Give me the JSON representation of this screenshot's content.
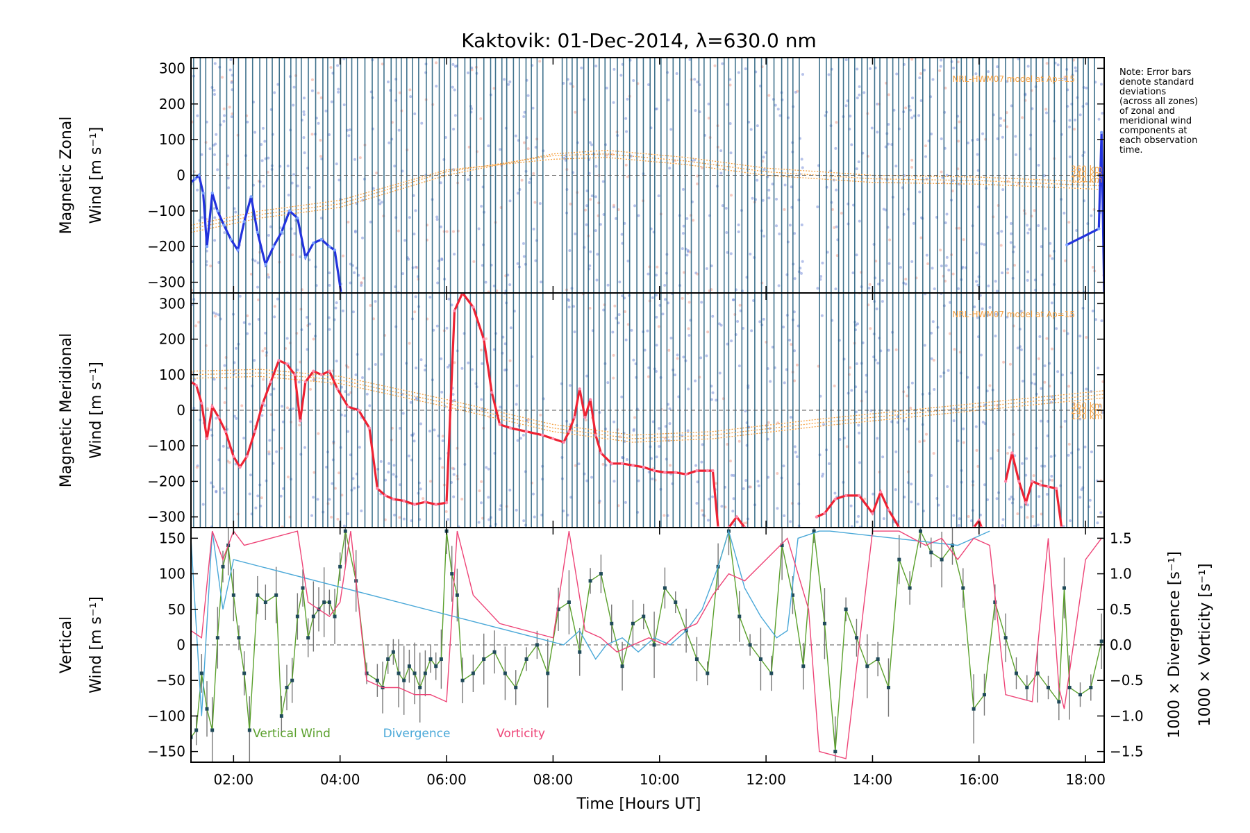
{
  "chart_data": {
    "title": "Kaktovik: 01-Dec-2014, λ=630.0 nm",
    "xlabel": "Time [Hours UT]",
    "xlim": [
      1.2,
      18.35
    ],
    "x_ticks": [
      "02:00",
      "04:00",
      "06:00",
      "08:00",
      "10:00",
      "12:00",
      "14:00",
      "16:00",
      "18:00"
    ],
    "x_tick_values": [
      2,
      4,
      6,
      8,
      10,
      12,
      14,
      16,
      18
    ],
    "note": [
      "Note: Error bars",
      "denote standard",
      "deviations",
      "(across all zones)",
      "of zonal and",
      "meridional wind",
      "components at",
      "each observation",
      "time."
    ],
    "colors": {
      "zonal": "#2233dd",
      "meridional": "#ee2233",
      "vertical": "#5aa02c",
      "divergence": "#4aa8d8",
      "vorticity": "#ee4477",
      "model": "#f5a040",
      "obs_lines": "#1f5a7a",
      "errorbar": "#777777",
      "dots": "#7a8fd8"
    },
    "panels": [
      {
        "type": "line",
        "ylabel_lines": [
          "Magnetic Zonal",
          "Wind"
        ],
        "ylabel_unit": "[m s⁻¹]",
        "ylim": [
          -330,
          330
        ],
        "y_ticks": [
          "300",
          "200",
          "100",
          "0",
          "−100",
          "−200",
          "−300"
        ],
        "y_tick_values": [
          300,
          200,
          100,
          0,
          -100,
          -200,
          -300
        ],
        "model_label": "NRL-HWM07 model at Ap=15",
        "model_curve_labels": [
          "360 km",
          "240 km",
          "120 km"
        ],
        "series": [
          {
            "name": "zonal",
            "x": [
              1.2,
              1.28,
              1.35,
              1.43,
              1.5,
              1.6,
              1.7,
              1.82,
              1.95,
              2.08,
              2.2,
              2.33,
              2.45,
              2.6,
              2.75,
              2.9,
              3.05,
              3.2,
              3.35,
              3.5,
              3.65,
              3.8,
              3.9,
              4.02
            ],
            "y": [
              -20,
              -10,
              0,
              -50,
              -200,
              -50,
              -100,
              -140,
              -180,
              -210,
              -130,
              -60,
              -160,
              -250,
              -200,
              -160,
              -100,
              -120,
              -230,
              -190,
              -180,
              -200,
              -210,
              -330
            ]
          },
          {
            "name": "zonal",
            "x": [
              17.65,
              18.25,
              18.3,
              18.35
            ],
            "y": [
              -195,
              -150,
              120,
              -330
            ]
          }
        ],
        "model_curves": [
          {
            "name": "360 km",
            "x": [
              1.2,
              2.5,
              4.0,
              6.0,
              8.0,
              9.0,
              10.5,
              12.0,
              14.0,
              16.0,
              18.35
            ],
            "y": [
              -160,
              -120,
              -90,
              0,
              60,
              70,
              50,
              20,
              0,
              -5,
              -20
            ]
          },
          {
            "name": "240 km",
            "x": [
              1.2,
              2.5,
              4.0,
              6.0,
              8.0,
              9.0,
              10.5,
              12.0,
              14.0,
              16.0,
              18.35
            ],
            "y": [
              -150,
              -110,
              -80,
              10,
              55,
              60,
              40,
              10,
              -10,
              -15,
              -30
            ]
          },
          {
            "name": "120 km",
            "x": [
              1.2,
              2.5,
              4.0,
              6.0,
              8.0,
              9.0,
              10.5,
              12.0,
              14.0,
              16.0,
              18.35
            ],
            "y": [
              -140,
              -100,
              -70,
              15,
              45,
              50,
              30,
              0,
              -20,
              -25,
              -40
            ]
          }
        ]
      },
      {
        "type": "line",
        "ylabel_lines": [
          "Magnetic Meridional",
          "Wind"
        ],
        "ylabel_unit": "[m s⁻¹]",
        "ylim": [
          -330,
          330
        ],
        "y_ticks": [
          "300",
          "200",
          "100",
          "0",
          "−100",
          "−200",
          "−300"
        ],
        "y_tick_values": [
          300,
          200,
          100,
          0,
          -100,
          -200,
          -300
        ],
        "model_label": "NRL-HWM07 model at Ap=15",
        "model_curve_labels": [
          "360 km",
          "240 km",
          "120 km"
        ],
        "series": [
          {
            "name": "meridional",
            "x": [
              1.2,
              1.3,
              1.4,
              1.5,
              1.6,
              1.72,
              1.85,
              2.0,
              2.12,
              2.25,
              2.4,
              2.55,
              2.7,
              2.85,
              3.0,
              3.15,
              3.25,
              3.35,
              3.5,
              3.65,
              3.8,
              3.95,
              4.15,
              4.35,
              4.55,
              4.7,
              4.85,
              5.0,
              5.2,
              5.4,
              5.6,
              5.8,
              6.0,
              6.15,
              6.3,
              6.5,
              6.7,
              6.85,
              7.0,
              7.2,
              7.5,
              7.8,
              8.0,
              8.2,
              8.3,
              8.4,
              8.5,
              8.6,
              8.7,
              8.8,
              8.9,
              9.1,
              9.3,
              9.5,
              9.7,
              9.9,
              10.1,
              10.3,
              10.5,
              10.7,
              10.9,
              11.0,
              11.1
            ],
            "y": [
              80,
              70,
              20,
              -80,
              10,
              -20,
              -60,
              -130,
              -160,
              -130,
              -60,
              20,
              80,
              140,
              130,
              100,
              -30,
              80,
              110,
              100,
              110,
              60,
              10,
              0,
              -50,
              -220,
              -240,
              -250,
              -255,
              -265,
              -258,
              -265,
              -260,
              280,
              330,
              290,
              200,
              50,
              -40,
              -50,
              -60,
              -70,
              -80,
              -90,
              -60,
              -20,
              60,
              -20,
              30,
              -70,
              -120,
              -150,
              -150,
              -155,
              -160,
              -170,
              -175,
              -175,
              -180,
              -170,
              -170,
              -170,
              -330
            ]
          },
          {
            "name": "meridional",
            "x": [
              11.3,
              11.45,
              11.6
            ],
            "y": [
              -330,
              -300,
              -330
            ]
          },
          {
            "name": "meridional",
            "x": [
              12.95,
              13.1,
              13.3,
              13.5,
              13.75,
              14.0,
              14.15,
              14.3,
              14.5
            ],
            "y": [
              -300,
              -290,
              -250,
              -240,
              -240,
              -290,
              -230,
              -280,
              -330
            ]
          },
          {
            "name": "meridional",
            "x": [
              15.9,
              16.0,
              16.05
            ],
            "y": [
              -330,
              -310,
              -330
            ]
          },
          {
            "name": "meridional",
            "x": [
              16.5,
              16.62,
              16.75,
              16.88,
              17.0,
              17.15,
              17.3,
              17.45,
              17.55
            ],
            "y": [
              -200,
              -120,
              -200,
              -260,
              -200,
              -210,
              -215,
              -220,
              -330
            ]
          }
        ],
        "model_curves": [
          {
            "name": "360 km",
            "x": [
              1.2,
              2.5,
              4.0,
              6.0,
              8.0,
              9.5,
              11.0,
              13.0,
              15.0,
              17.0,
              18.35
            ],
            "y": [
              110,
              115,
              95,
              30,
              -40,
              -70,
              -60,
              -25,
              5,
              35,
              55
            ]
          },
          {
            "name": "240 km",
            "x": [
              1.2,
              2.5,
              4.0,
              6.0,
              8.0,
              9.5,
              11.0,
              13.0,
              15.0,
              17.0,
              18.35
            ],
            "y": [
              100,
              105,
              85,
              20,
              -50,
              -80,
              -70,
              -35,
              -5,
              25,
              45
            ]
          },
          {
            "name": "120 km",
            "x": [
              1.2,
              2.5,
              4.0,
              6.0,
              8.0,
              9.5,
              11.0,
              13.0,
              15.0,
              17.0,
              18.35
            ],
            "y": [
              90,
              95,
              75,
              10,
              -60,
              -90,
              -80,
              -45,
              -15,
              15,
              35
            ]
          }
        ]
      },
      {
        "type": "line",
        "ylabel_lines": [
          "Vertical",
          "Wind"
        ],
        "ylabel_unit": "[m s⁻¹]",
        "ylim": [
          -165,
          165
        ],
        "y_ticks": [
          "150",
          "100",
          "50",
          "0",
          "−50",
          "−100",
          "−150"
        ],
        "y_tick_values": [
          150,
          100,
          50,
          0,
          -50,
          -100,
          -150
        ],
        "y2lim": [
          -1.65,
          1.65
        ],
        "y2_ticks": [
          "1.5",
          "1.0",
          "0.5",
          "0.0",
          "−0.5",
          "−1.0",
          "−1.5"
        ],
        "y2_tick_values": [
          1.5,
          1.0,
          0.5,
          0.0,
          -0.5,
          -1.0,
          -1.5
        ],
        "y2label_divergence": "1000 × Divergence [s⁻¹]",
        "y2label_vorticity": "1000 × Vorticity [s⁻¹]",
        "legend": [
          "Vertical Wind",
          "Divergence",
          "Vorticity"
        ],
        "series": [
          {
            "name": "Vertical Wind",
            "x": [
              1.2,
              1.3,
              1.4,
              1.5,
              1.6,
              1.7,
              1.8,
              1.9,
              2.0,
              2.1,
              2.2,
              2.3,
              2.45,
              2.6,
              2.8,
              2.9,
              3.0,
              3.1,
              3.2,
              3.3,
              3.4,
              3.5,
              3.6,
              3.7,
              3.8,
              3.9,
              4.0,
              4.1,
              4.3,
              4.5,
              4.7,
              4.8,
              4.9,
              5.0,
              5.1,
              5.2,
              5.3,
              5.4,
              5.5,
              5.6,
              5.7,
              5.8,
              5.9,
              6.0,
              6.1,
              6.2,
              6.3,
              6.5,
              6.7,
              6.9,
              7.1,
              7.3,
              7.5,
              7.7,
              7.9,
              8.1,
              8.3,
              8.5,
              8.7,
              8.9,
              9.1,
              9.3,
              9.5,
              9.7,
              9.9,
              10.1,
              10.3,
              10.5,
              10.7,
              10.9,
              11.1,
              11.3,
              11.5,
              11.7,
              11.9,
              12.1,
              12.3,
              12.5,
              12.7,
              12.9,
              13.1,
              13.3,
              13.5,
              13.7,
              13.9,
              14.1,
              14.3,
              14.5,
              14.7,
              14.9,
              15.1,
              15.3,
              15.5,
              15.7,
              15.9,
              16.1,
              16.3,
              16.5,
              16.7,
              16.9,
              17.1,
              17.3,
              17.5,
              17.6,
              17.7,
              17.9,
              18.1,
              18.3
            ],
            "y": [
              -130,
              -120,
              -40,
              -90,
              -120,
              10,
              110,
              140,
              70,
              10,
              -40,
              -120,
              70,
              60,
              70,
              -100,
              -60,
              -50,
              40,
              80,
              10,
              40,
              50,
              60,
              60,
              40,
              110,
              160,
              90,
              -40,
              -50,
              -60,
              -20,
              -10,
              -40,
              -50,
              -30,
              -40,
              -60,
              -40,
              -20,
              -30,
              -20,
              160,
              100,
              70,
              -50,
              -40,
              -20,
              -10,
              -40,
              -60,
              -20,
              0,
              -40,
              50,
              60,
              -10,
              90,
              100,
              30,
              -30,
              30,
              40,
              0,
              80,
              60,
              20,
              -20,
              -40,
              110,
              160,
              40,
              0,
              -20,
              -40,
              140,
              70,
              -30,
              160,
              30,
              -150,
              50,
              10,
              -30,
              -20,
              -60,
              120,
              80,
              160,
              130,
              120,
              140,
              80,
              -90,
              -70,
              60,
              10,
              -40,
              -60,
              -40,
              -60,
              -80,
              80,
              -60,
              -70,
              -60,
              5
            ],
            "role": "primary"
          },
          {
            "name": "Divergence",
            "x": [
              1.2,
              1.4,
              1.6,
              1.8,
              2.0,
              8.2,
              8.5,
              8.8,
              9.0,
              9.3,
              9.6,
              9.9,
              10.2,
              10.5,
              10.8,
              11.1,
              11.3,
              11.6,
              11.9,
              12.2,
              12.4,
              12.6,
              13.0,
              13.2,
              15.6,
              15.9,
              16.2
            ],
            "y": [
              1.5,
              -1.0,
              1.6,
              0.5,
              1.2,
              0.0,
              0.2,
              -0.2,
              0.0,
              0.1,
              -0.1,
              0.1,
              0.0,
              0.2,
              0.5,
              1.1,
              1.6,
              0.8,
              0.4,
              0.1,
              0.2,
              1.5,
              1.6,
              1.6,
              1.4,
              1.5,
              1.6
            ],
            "role": "secondary"
          },
          {
            "name": "Vorticity",
            "x": [
              1.2,
              1.4,
              1.6,
              1.8,
              2.0,
              2.2,
              3.2,
              3.4,
              3.6,
              3.8,
              4.0,
              4.2,
              4.5,
              4.8,
              5.1,
              5.4,
              5.7,
              6.0,
              6.2,
              6.5,
              7.0,
              7.5,
              8.0,
              8.3,
              8.6,
              8.9,
              9.2,
              9.5,
              9.8,
              10.1,
              10.4,
              10.7,
              11.0,
              11.3,
              11.6,
              12.0,
              12.4,
              12.8,
              13.0,
              13.5,
              14.0,
              14.5,
              15.0,
              15.3,
              15.6,
              15.9,
              16.2,
              16.5,
              17.0,
              17.3,
              17.5,
              17.6,
              18.0,
              18.3
            ],
            "y": [
              0.2,
              0.1,
              1.6,
              1.2,
              1.6,
              1.4,
              1.6,
              0.6,
              0.5,
              0.4,
              0.6,
              1.6,
              -0.5,
              -0.6,
              -0.6,
              -0.7,
              -0.7,
              -0.8,
              1.6,
              0.7,
              0.3,
              0.2,
              0.1,
              1.6,
              0.2,
              0.1,
              -0.1,
              0.0,
              0.1,
              0.0,
              0.2,
              0.3,
              0.7,
              1.0,
              0.9,
              1.2,
              1.5,
              0.5,
              -1.5,
              -1.6,
              1.6,
              1.6,
              1.4,
              1.5,
              1.2,
              1.5,
              1.4,
              -0.7,
              -0.8,
              1.5,
              -0.6,
              -0.9,
              1.2,
              1.5
            ],
            "role": "secondary"
          }
        ]
      }
    ]
  }
}
